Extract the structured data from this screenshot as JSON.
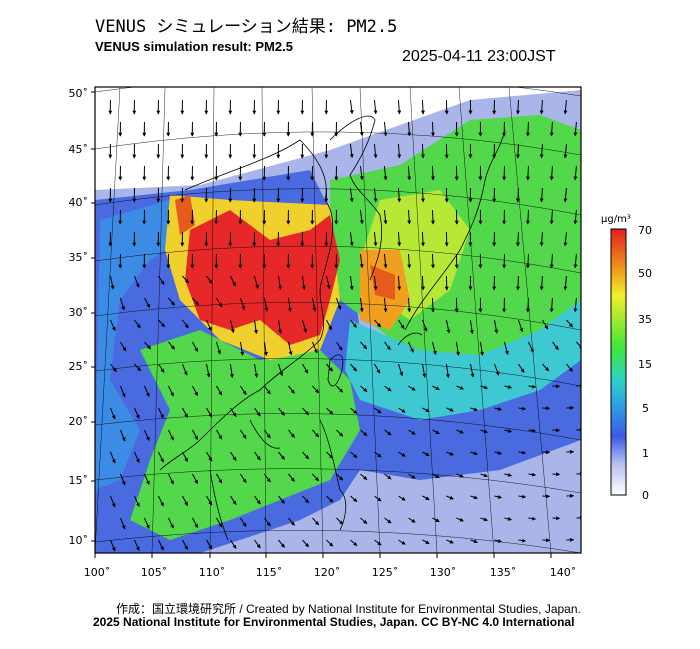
{
  "header": {
    "title_jp": "VENUS シミュレーション結果: PM2.5",
    "title_en": "VENUS simulation result: PM2.5",
    "timestamp": "2025-04-11 23:00JST"
  },
  "map": {
    "lat_labels": [
      "50˚",
      "45˚",
      "40˚",
      "35˚",
      "30˚",
      "25˚",
      "20˚",
      "15˚",
      "10˚"
    ],
    "lon_labels": [
      "100˚",
      "105˚",
      "110˚",
      "115˚",
      "120˚",
      "125˚",
      "130˚",
      "135˚",
      "140˚"
    ]
  },
  "colorbar": {
    "unit": "μg/m³",
    "ticks": [
      "70",
      "50",
      "35",
      "15",
      "5",
      "1",
      "0"
    ],
    "colors": [
      "#e6e6f0",
      "#3c5ae6",
      "#2dbfe6",
      "#3ce63c",
      "#f0f02d",
      "#f08c1e",
      "#e61e1e"
    ]
  },
  "footer": {
    "credit": "作成：国立環境研究所 / Created by National Institute for Environmental Studies, Japan.",
    "license": "2025 National Institute for Environmental Studies, Japan. CC BY-NC 4.0 International"
  }
}
